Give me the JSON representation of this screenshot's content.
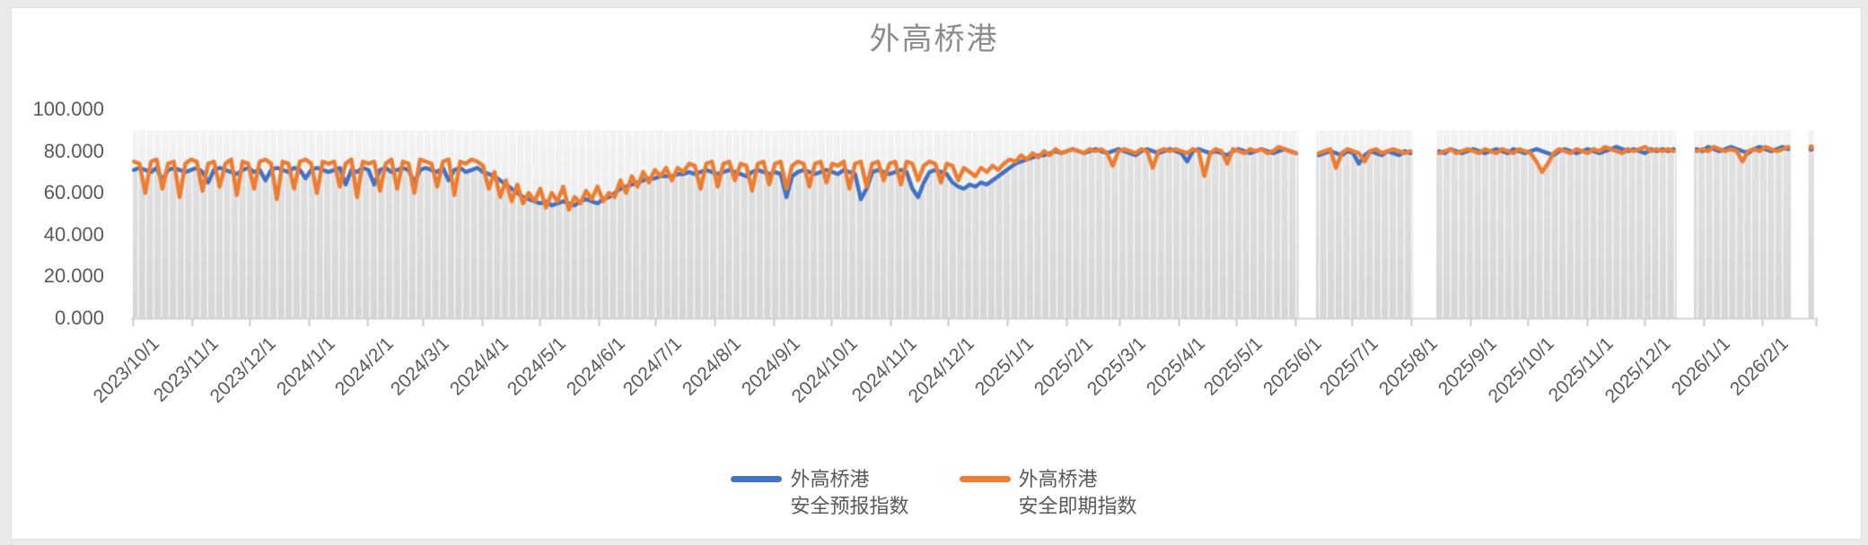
{
  "title": "外高桥港",
  "colors": {
    "page_background": "#eaeaea",
    "card_background": "#ffffff",
    "title_text": "#8c8c8c",
    "axis_label_text": "#595959",
    "axis_line": "#d4d4d4",
    "tick_mark": "#c9c9c9",
    "bar_light_top": "#f3f3f3",
    "bar_light_bottom": "#e6e6e6",
    "bar_dark_top": "#e3e3e3",
    "bar_dark_bottom": "#d6d6d6",
    "bar_separator": "rgba(255,255,255,0.85)"
  },
  "chart_data": {
    "type": "line",
    "title": "外高桥港",
    "xlabel": "",
    "ylabel": "",
    "ylim": [
      0,
      100
    ],
    "grid": false,
    "legend_position": "bottom",
    "background_bar_top": 90,
    "y_ticks": [
      {
        "value": 0,
        "label": "0.000"
      },
      {
        "value": 20,
        "label": "20.000"
      },
      {
        "value": 40,
        "label": "40.000"
      },
      {
        "value": 60,
        "label": "60.000"
      },
      {
        "value": 80,
        "label": "80.000"
      },
      {
        "value": 100,
        "label": "100.000"
      }
    ],
    "x_start_date": "2023/10/1",
    "x_end_date": "2026/3/1",
    "step_days": 3,
    "x_tick_labels": [
      "2023/10/1",
      "2023/11/1",
      "2023/12/1",
      "2024/1/1",
      "2024/2/1",
      "2024/3/1",
      "2024/4/1",
      "2024/5/1",
      "2024/6/1",
      "2024/7/1",
      "2024/8/1",
      "2024/9/1",
      "2024/10/1",
      "2024/11/1",
      "2024/12/1",
      "2025/1/1",
      "2025/2/1",
      "2025/3/1",
      "2025/4/1",
      "2025/5/1",
      "2025/6/1",
      "2025/7/1",
      "2025/8/1",
      "2025/9/1",
      "2025/10/1",
      "2025/11/1",
      "2025/12/1",
      "2026/1/1",
      "2026/2/1"
    ],
    "series": [
      {
        "name": "外高桥港安全预报指数",
        "legend_lines": [
          "外高桥港",
          "安全预报指数"
        ],
        "color": "#4472C4",
        "values": [
          71,
          72,
          71,
          70,
          72,
          66,
          71,
          72,
          71,
          70,
          71,
          72,
          70,
          65,
          71,
          72,
          71,
          70,
          69,
          71,
          72,
          70,
          71,
          66,
          71,
          72,
          71,
          70,
          72,
          71,
          67,
          71,
          72,
          71,
          70,
          71,
          72,
          64,
          71,
          70,
          72,
          71,
          64,
          71,
          72,
          70,
          71,
          72,
          71,
          65,
          71,
          72,
          71,
          70,
          72,
          66,
          71,
          72,
          70,
          71,
          72,
          70,
          69,
          68,
          66,
          64,
          62,
          60,
          58,
          57,
          56,
          55,
          56,
          54,
          55,
          56,
          55,
          54,
          56,
          57,
          56,
          55,
          57,
          58,
          60,
          62,
          63,
          64,
          65,
          66,
          67,
          67,
          68,
          68,
          68,
          69,
          69,
          70,
          69,
          70,
          71,
          70,
          69,
          70,
          71,
          70,
          69,
          68,
          70,
          71,
          70,
          69,
          70,
          69,
          58,
          68,
          70,
          71,
          70,
          69,
          70,
          71,
          70,
          69,
          71,
          70,
          69,
          57,
          62,
          70,
          71,
          70,
          69,
          70,
          71,
          70,
          62,
          58,
          65,
          70,
          71,
          70,
          69,
          65,
          63,
          62,
          64,
          63,
          65,
          64,
          66,
          68,
          70,
          72,
          74,
          75,
          76,
          77,
          78,
          78,
          79,
          80,
          79,
          80,
          81,
          80,
          79,
          80,
          81,
          80,
          79,
          80,
          81,
          80,
          79,
          78,
          80,
          81,
          80,
          79,
          80,
          81,
          80,
          79,
          75,
          80,
          81,
          80,
          79,
          80,
          79,
          78,
          80,
          81,
          80,
          79,
          80,
          81,
          80,
          79,
          80,
          81,
          80,
          79,
          null,
          null,
          null,
          78,
          79,
          80,
          79,
          78,
          80,
          79,
          74,
          78,
          80,
          79,
          78,
          80,
          79,
          78,
          80,
          79,
          null,
          null,
          null,
          null,
          80,
          79,
          81,
          80,
          79,
          80,
          81,
          80,
          79,
          80,
          81,
          80,
          79,
          81,
          80,
          79,
          80,
          81,
          80,
          79,
          78,
          80,
          81,
          80,
          79,
          80,
          81,
          80,
          79,
          80,
          81,
          82,
          81,
          80,
          81,
          80,
          79,
          81,
          80,
          81,
          80,
          81,
          null,
          null,
          null,
          81,
          80,
          82,
          81,
          80,
          81,
          82,
          81,
          80,
          79,
          81,
          82,
          81,
          80,
          81,
          82,
          81,
          null,
          null,
          null,
          81
        ]
      },
      {
        "name": "外高桥港安全即期指数",
        "legend_lines": [
          "外高桥港",
          "安全即期指数"
        ],
        "color": "#ED7D31",
        "values": [
          75,
          74,
          60,
          75,
          76,
          62,
          74,
          75,
          58,
          74,
          76,
          75,
          61,
          74,
          75,
          63,
          74,
          76,
          59,
          75,
          74,
          62,
          75,
          76,
          74,
          57,
          75,
          74,
          62,
          75,
          76,
          74,
          60,
          75,
          74,
          75,
          63,
          74,
          76,
          58,
          75,
          74,
          75,
          61,
          74,
          76,
          62,
          75,
          74,
          60,
          76,
          75,
          74,
          63,
          75,
          76,
          59,
          75,
          74,
          76,
          75,
          73,
          62,
          70,
          58,
          66,
          56,
          64,
          55,
          60,
          56,
          62,
          53,
          60,
          56,
          63,
          52,
          58,
          55,
          61,
          57,
          63,
          56,
          60,
          58,
          66,
          60,
          68,
          63,
          70,
          65,
          71,
          68,
          72,
          66,
          72,
          70,
          74,
          73,
          62,
          74,
          75,
          63,
          74,
          75,
          66,
          74,
          73,
          61,
          74,
          75,
          64,
          74,
          75,
          62,
          73,
          75,
          74,
          63,
          74,
          75,
          65,
          74,
          73,
          75,
          62,
          74,
          75,
          63,
          74,
          75,
          66,
          74,
          75,
          64,
          75,
          74,
          66,
          73,
          75,
          74,
          65,
          74,
          73,
          66,
          72,
          70,
          68,
          72,
          70,
          73,
          71,
          74,
          76,
          75,
          78,
          76,
          79,
          77,
          80,
          78,
          81,
          79,
          80,
          81,
          80,
          79,
          81,
          80,
          81,
          79,
          73,
          80,
          81,
          80,
          79,
          81,
          80,
          72,
          80,
          81,
          80,
          81,
          80,
          79,
          81,
          80,
          68,
          79,
          81,
          80,
          74,
          81,
          80,
          79,
          81,
          80,
          81,
          79,
          80,
          82,
          81,
          80,
          79,
          null,
          null,
          null,
          79,
          80,
          81,
          72,
          79,
          81,
          80,
          79,
          75,
          80,
          81,
          79,
          80,
          81,
          80,
          79,
          80,
          null,
          null,
          null,
          null,
          79,
          80,
          81,
          79,
          80,
          81,
          80,
          79,
          81,
          80,
          79,
          81,
          80,
          79,
          81,
          80,
          79,
          75,
          70,
          74,
          79,
          81,
          80,
          79,
          81,
          80,
          79,
          81,
          80,
          82,
          81,
          80,
          79,
          81,
          80,
          81,
          82,
          80,
          81,
          80,
          81,
          80,
          null,
          null,
          null,
          80,
          81,
          80,
          82,
          81,
          80,
          81,
          80,
          75,
          80,
          81,
          80,
          82,
          81,
          80,
          81,
          82,
          null,
          null,
          null,
          82
        ]
      }
    ]
  }
}
